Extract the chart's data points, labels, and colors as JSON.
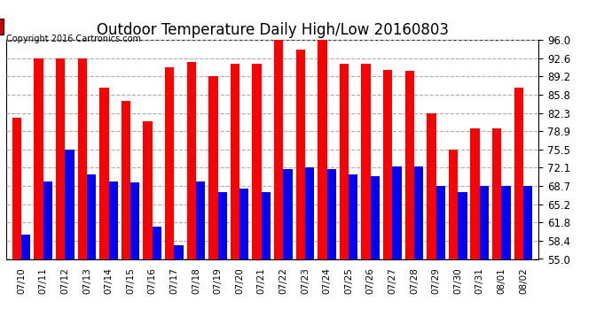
{
  "title": "Outdoor Temperature Daily High/Low 20160803",
  "copyright": "Copyright 2016 Cartronics.com",
  "ylim": [
    55.0,
    96.0
  ],
  "yticks": [
    55.0,
    58.4,
    61.8,
    65.2,
    68.7,
    72.1,
    75.5,
    78.9,
    82.3,
    85.8,
    89.2,
    92.6,
    96.0
  ],
  "dates": [
    "07/10",
    "07/11",
    "07/12",
    "07/13",
    "07/14",
    "07/15",
    "07/16",
    "07/17",
    "07/18",
    "07/19",
    "07/20",
    "07/21",
    "07/22",
    "07/23",
    "07/24",
    "07/25",
    "07/26",
    "07/27",
    "07/28",
    "07/29",
    "07/30",
    "07/31",
    "08/01",
    "08/02"
  ],
  "high": [
    81.5,
    92.6,
    92.6,
    92.6,
    87.0,
    84.5,
    80.8,
    90.8,
    91.8,
    89.2,
    91.5,
    91.5,
    96.0,
    94.2,
    96.0,
    91.5,
    91.5,
    90.3,
    90.2,
    82.3,
    75.5,
    79.5,
    79.5,
    87.0
  ],
  "low": [
    59.5,
    69.5,
    75.5,
    70.8,
    69.5,
    69.3,
    61.0,
    57.5,
    69.5,
    67.5,
    68.2,
    67.5,
    71.8,
    72.1,
    71.8,
    70.8,
    70.5,
    72.3,
    72.3,
    68.7,
    67.5,
    68.7,
    68.7,
    68.7
  ],
  "high_color": "#ff0000",
  "low_color": "#0000ff",
  "background_color": "#ffffff",
  "grid_color": "#aaaaaa",
  "title_fontsize": 12,
  "bar_width": 0.42,
  "legend_low_color": "#0000cc",
  "legend_high_color": "#cc0000"
}
